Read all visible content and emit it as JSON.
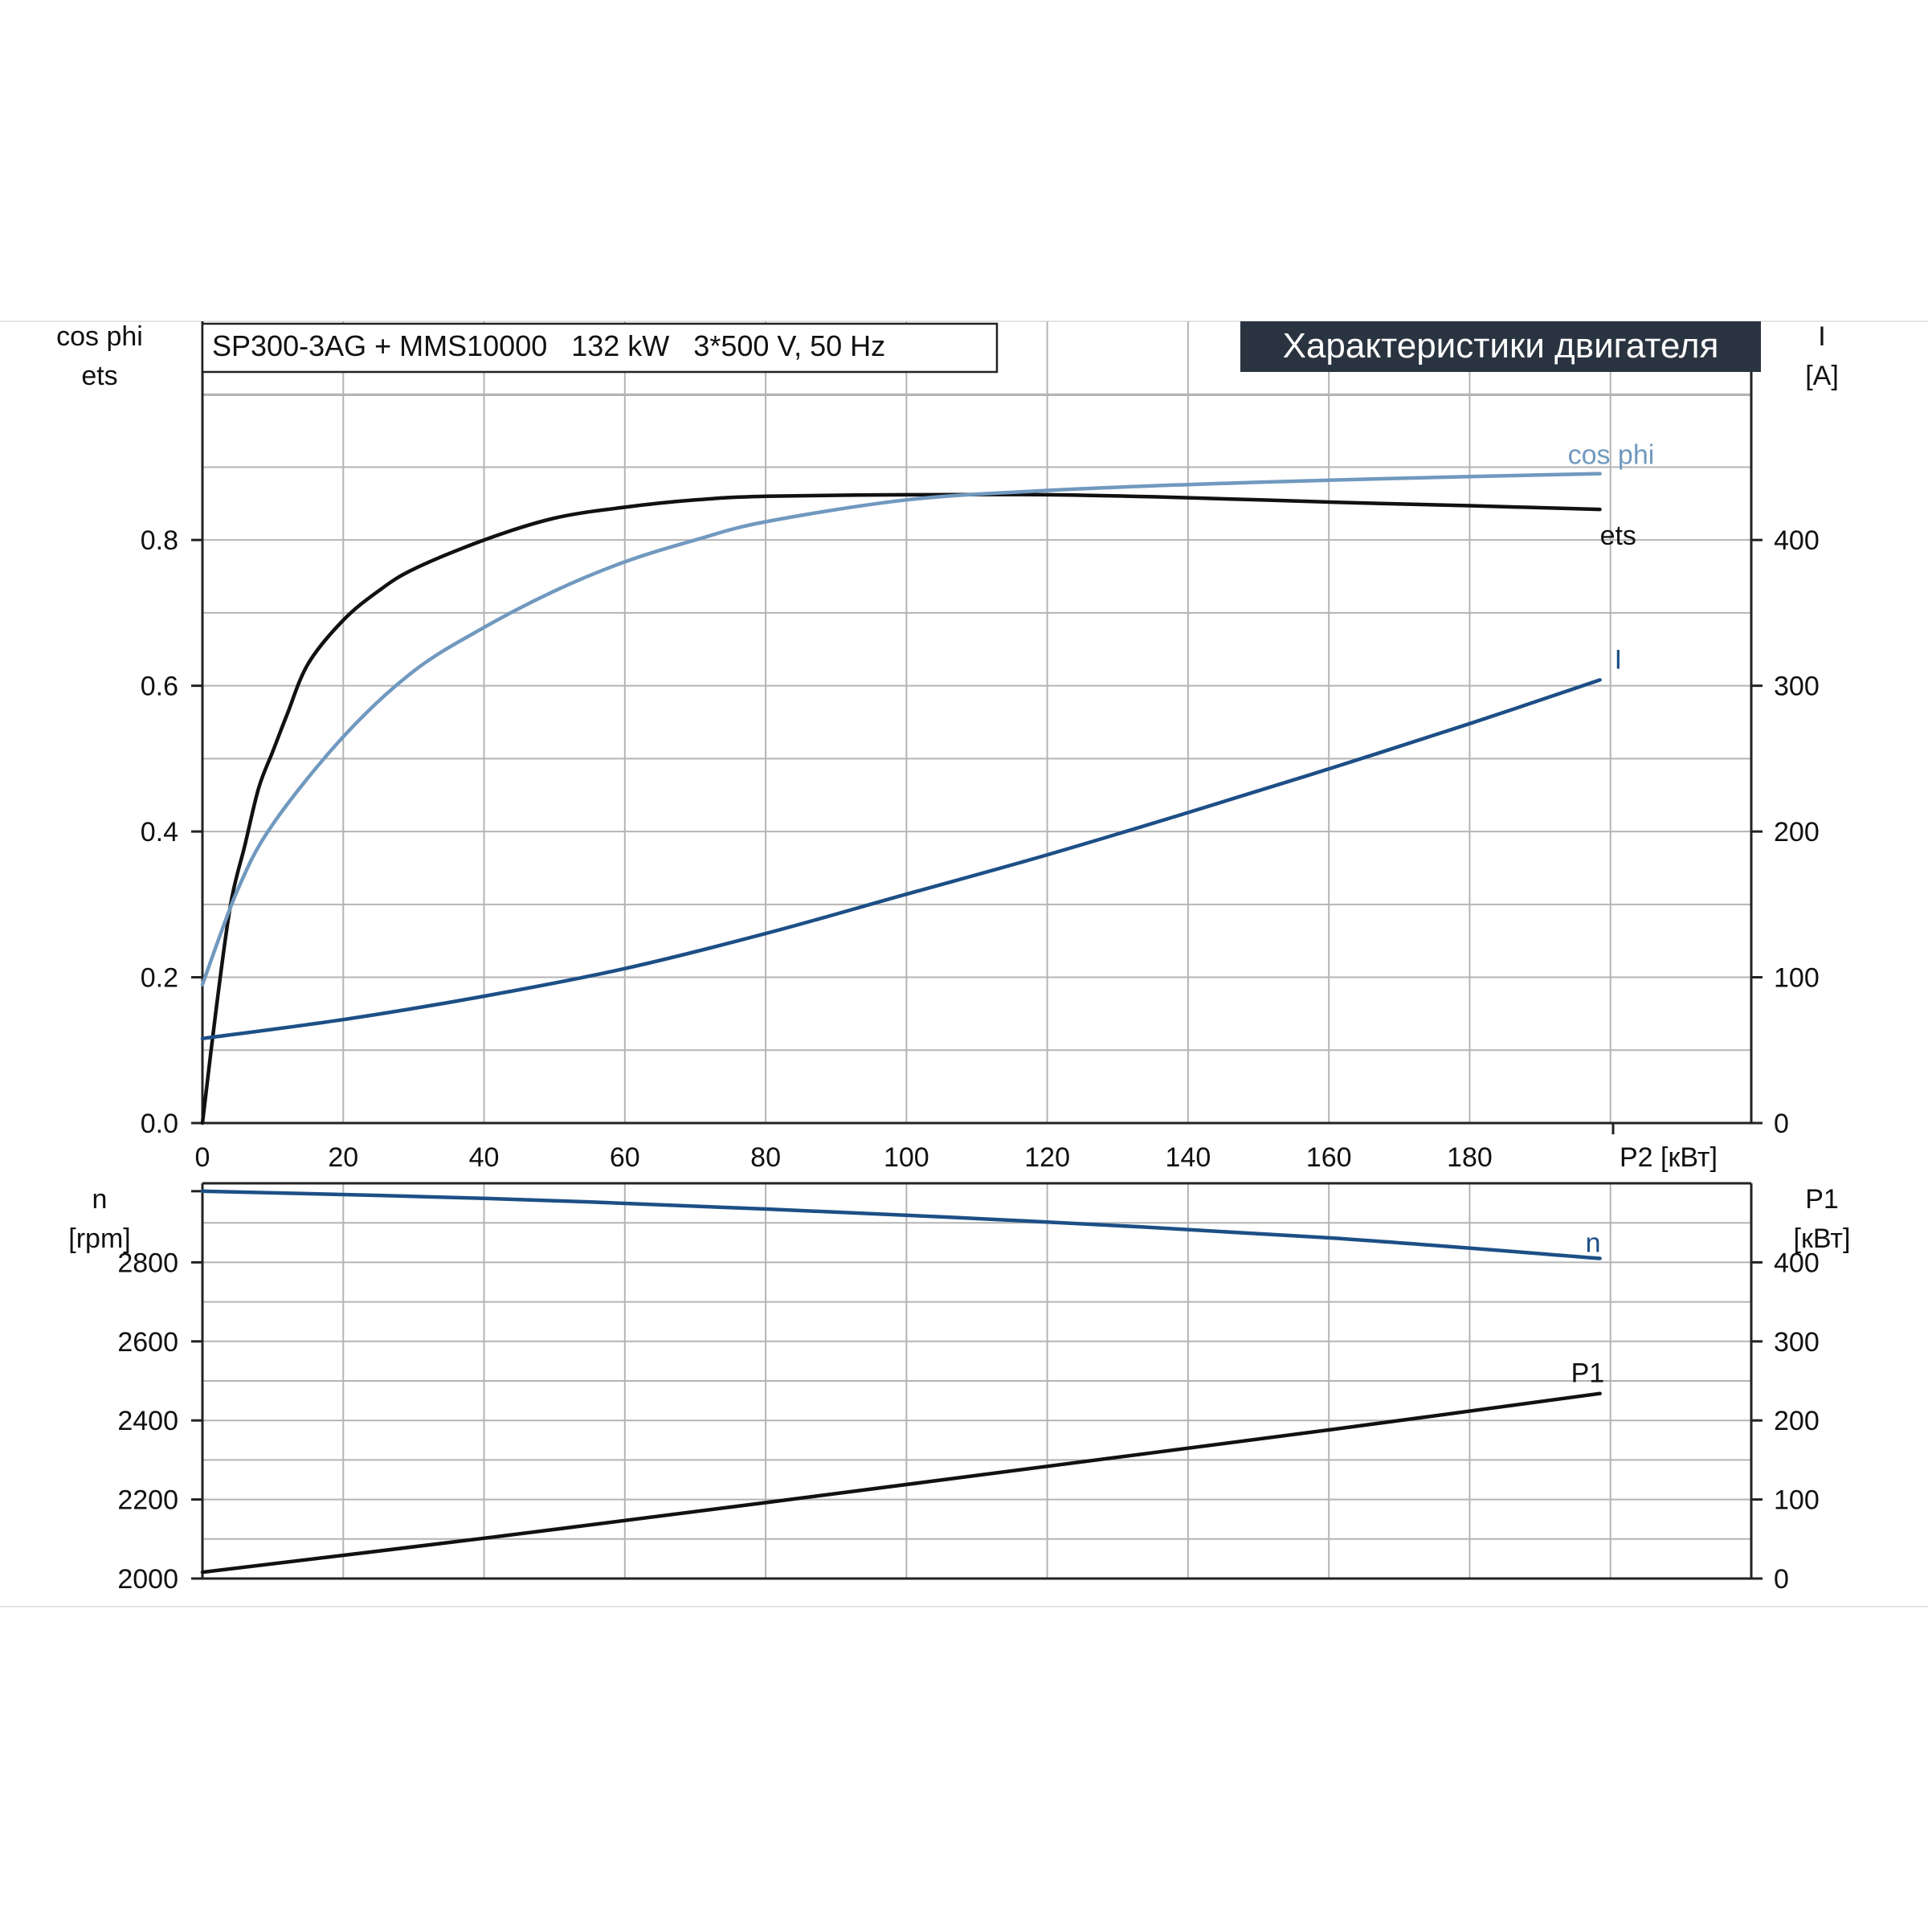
{
  "header": {
    "model_label": "SP300-3AG + MMS10000   132 kW   3*500 V, 50 Hz",
    "title": "Характеристики двигателя"
  },
  "colors": {
    "ets": "#111111",
    "cos_phi": "#7199bf",
    "I": "#1d4f86",
    "n": "#1d4f86",
    "P1": "#111111",
    "title_bg": "#2a3440",
    "title_fg": "#ffffff"
  },
  "chart_data": [
    {
      "type": "line",
      "panel": "upper",
      "xlabel": "P2 [кВт]",
      "x_ticks": [
        "0",
        "20",
        "40",
        "60",
        "80",
        "100",
        "120",
        "140",
        "160",
        "180"
      ],
      "xlim": [
        0,
        220
      ],
      "ylabel_left": [
        "cos phi",
        "ets"
      ],
      "ylabel_right": [
        "I",
        "[A]"
      ],
      "y_left_ticks": [
        "0.0",
        "0.2",
        "0.4",
        "0.6",
        "0.8"
      ],
      "y_right_ticks": [
        "0",
        "100",
        "200",
        "300",
        "400"
      ],
      "ylim_left": [
        0,
        1.1
      ],
      "ylim_right": [
        0,
        550
      ],
      "grid": true,
      "series": [
        {
          "name": "ets",
          "axis": "left",
          "color_key": "ets",
          "x": [
            0,
            2,
            4,
            6,
            8,
            10,
            12,
            15,
            20,
            25,
            30,
            40,
            50,
            60,
            70,
            80,
            100,
            120,
            140,
            160,
            180,
            198.5
          ],
          "y": [
            0.0,
            0.16,
            0.3,
            0.38,
            0.46,
            0.51,
            0.56,
            0.63,
            0.69,
            0.73,
            0.76,
            0.8,
            0.83,
            0.845,
            0.855,
            0.86,
            0.862,
            0.862,
            0.858,
            0.852,
            0.847,
            0.842
          ]
        },
        {
          "name": "cos phi",
          "axis": "left",
          "color_key": "cos_phi",
          "x": [
            0,
            5,
            10,
            20,
            30,
            40,
            50,
            60,
            70,
            80,
            100,
            120,
            140,
            160,
            180,
            198.5
          ],
          "y": [
            0.19,
            0.32,
            0.41,
            0.53,
            0.62,
            0.68,
            0.73,
            0.77,
            0.8,
            0.825,
            0.855,
            0.868,
            0.876,
            0.882,
            0.887,
            0.891
          ]
        },
        {
          "name": "I",
          "axis": "right",
          "color_key": "I",
          "x": [
            0,
            20,
            40,
            60,
            80,
            100,
            120,
            140,
            160,
            180,
            198.5
          ],
          "y": [
            58,
            71,
            87,
            106,
            130,
            157,
            184,
            213,
            243,
            274,
            304
          ]
        }
      ],
      "labels": [
        {
          "text": "cos phi",
          "color_key": "cos_phi"
        },
        {
          "text": "ets",
          "color_key": "ets"
        },
        {
          "text": "I",
          "color_key": "I"
        }
      ]
    },
    {
      "type": "line",
      "panel": "lower",
      "xlim": [
        0,
        220
      ],
      "ylabel_left": [
        "n",
        "[rpm]"
      ],
      "ylabel_right": [
        "P1",
        "[кВт]"
      ],
      "y_left_ticks": [
        "2000",
        "2200",
        "2400",
        "2600",
        "2800"
      ],
      "y_right_ticks": [
        "0",
        "100",
        "200",
        "300",
        "400"
      ],
      "ylim_left": [
        2000,
        3000
      ],
      "ylim_right": [
        0,
        500
      ],
      "grid": true,
      "series": [
        {
          "name": "n",
          "axis": "left",
          "color_key": "n",
          "x": [
            0,
            40,
            80,
            120,
            160,
            198.5
          ],
          "y": [
            2980,
            2962,
            2935,
            2902,
            2862,
            2810
          ]
        },
        {
          "name": "P1",
          "axis": "right",
          "color_key": "P1",
          "x": [
            0,
            40,
            80,
            120,
            160,
            198.5
          ],
          "y": [
            8,
            51,
            96,
            142,
            188,
            234
          ]
        }
      ],
      "labels": [
        {
          "text": "n",
          "color_key": "n"
        },
        {
          "text": "P1",
          "color_key": "P1"
        }
      ]
    }
  ]
}
